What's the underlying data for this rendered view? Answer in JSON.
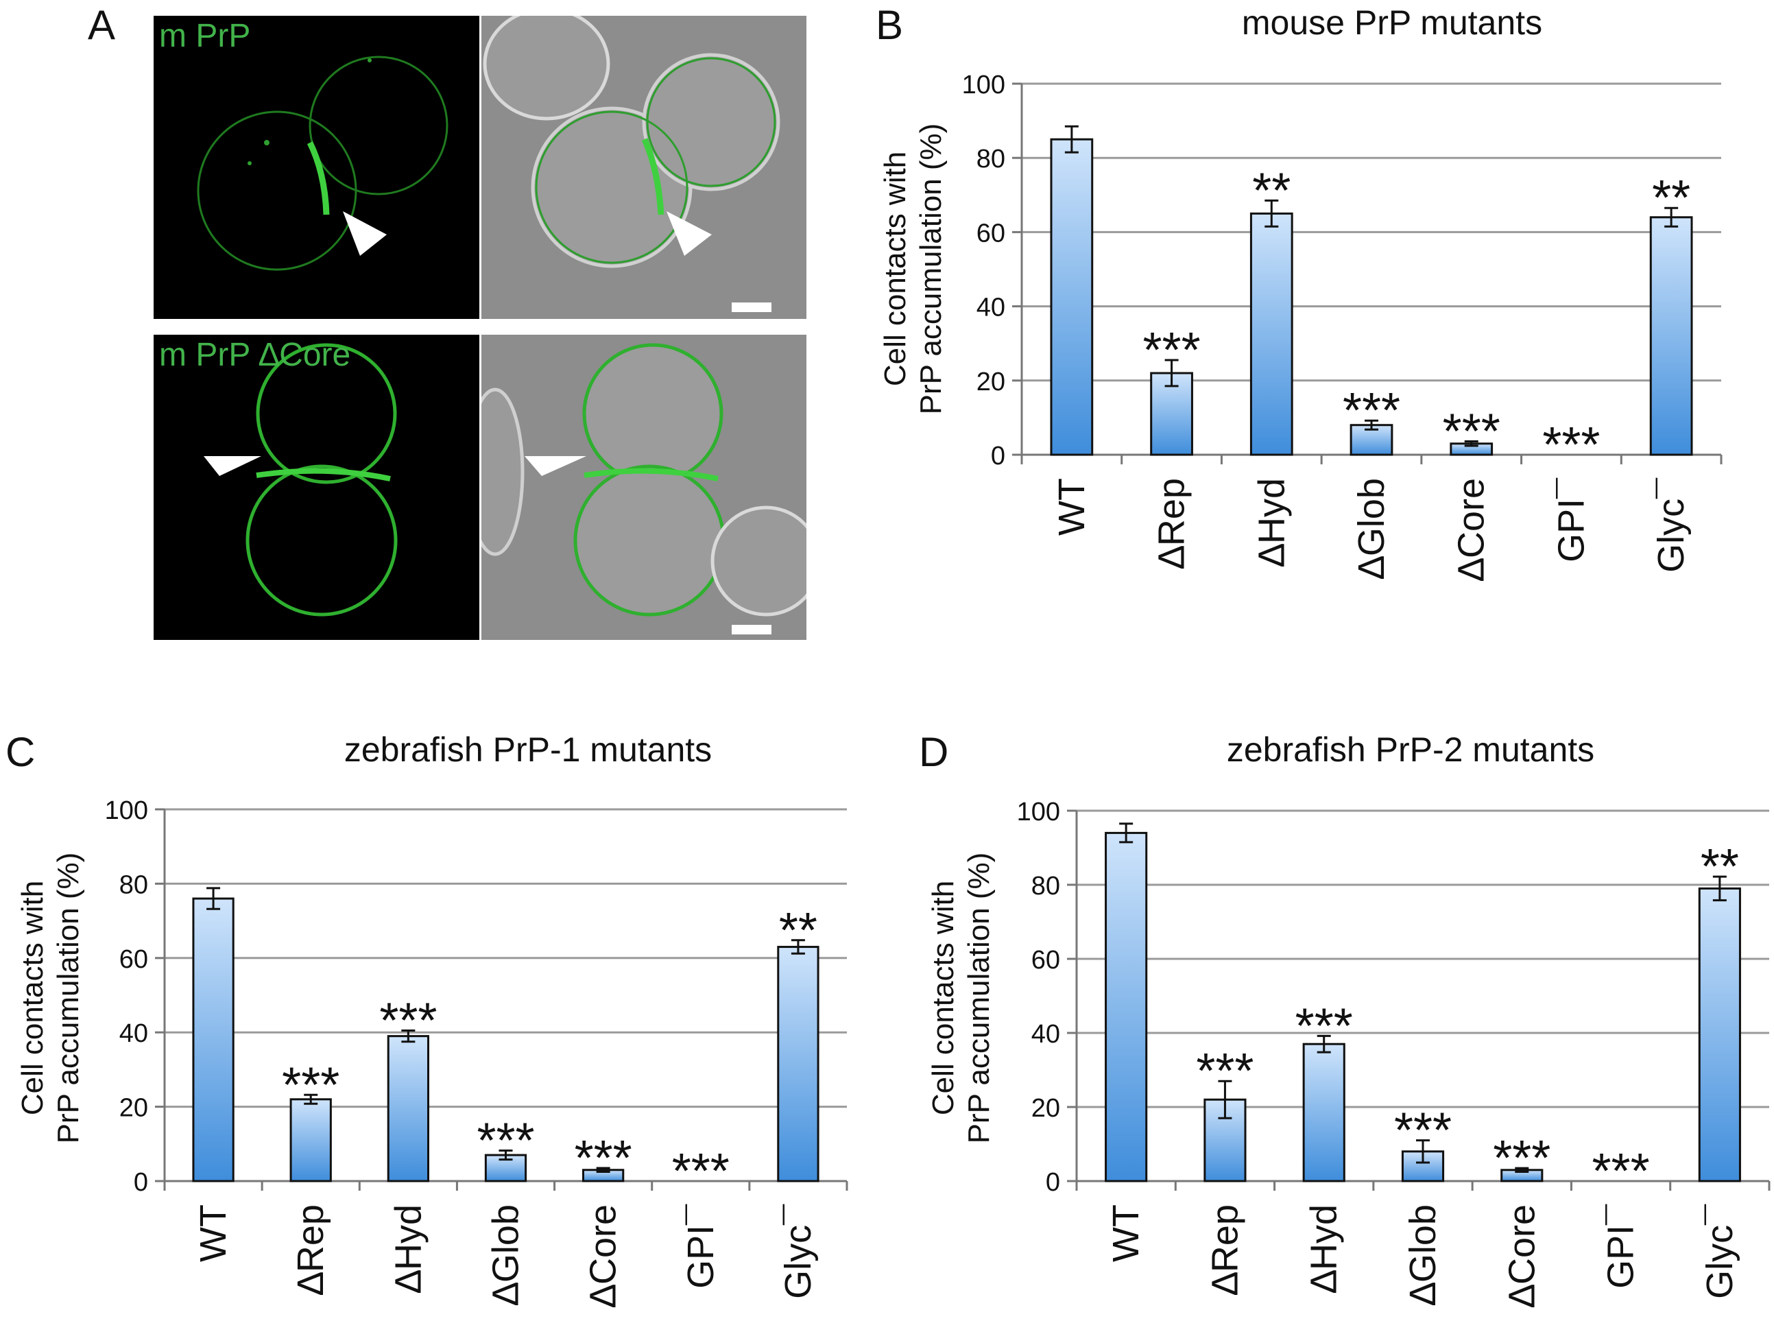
{
  "panel_a": {
    "letter": "A",
    "top_label": "m PrP",
    "bottom_label": "m PrP ∆Core"
  },
  "colors": {
    "bar_top": "#cfe4fb",
    "bar_bottom": "#3f8ddb",
    "gridline": "#9a9a9a",
    "fluorescence": "#3fd03f"
  },
  "chart_data": [
    {
      "panel": "B",
      "type": "bar",
      "title": "mouse PrP mutants",
      "ylabel_line1": "Cell contacts with",
      "ylabel_line2": "PrP accumulation (%)",
      "ylim": [
        0,
        100
      ],
      "yticks": [
        0,
        20,
        40,
        60,
        80,
        100
      ],
      "grid": true,
      "categories": [
        "WT",
        "∆Rep",
        "∆Hyd",
        "∆Glob",
        "∆Core",
        "GPI¯",
        "Glyc¯"
      ],
      "values": [
        85,
        22,
        65,
        8,
        3,
        0,
        64
      ],
      "errors": [
        3.5,
        3.5,
        3.5,
        1.2,
        0.6,
        0,
        2.5
      ],
      "significance": [
        "",
        "***",
        "**",
        "***",
        "***",
        "***",
        "**"
      ]
    },
    {
      "panel": "C",
      "type": "bar",
      "title": "zebrafish PrP-1 mutants",
      "ylabel_line1": "Cell contacts with",
      "ylabel_line2": "PrP accumulation (%)",
      "ylim": [
        0,
        100
      ],
      "yticks": [
        0,
        20,
        40,
        60,
        80,
        100
      ],
      "grid": true,
      "categories": [
        "WT",
        "∆Rep",
        "∆Hyd",
        "∆Glob",
        "∆Core",
        "GPI¯",
        "Glyc¯"
      ],
      "values": [
        76,
        22,
        39,
        7,
        3,
        0,
        63
      ],
      "errors": [
        2.8,
        1.2,
        1.5,
        1.2,
        0.5,
        0,
        1.8
      ],
      "significance": [
        "",
        "***",
        "***",
        "***",
        "***",
        "***",
        "**"
      ]
    },
    {
      "panel": "D",
      "type": "bar",
      "title": "zebrafish PrP-2 mutants",
      "ylabel_line1": "Cell contacts with",
      "ylabel_line2": "PrP accumulation (%)",
      "ylim": [
        0,
        100
      ],
      "yticks": [
        0,
        20,
        40,
        60,
        80,
        100
      ],
      "grid": true,
      "categories": [
        "WT",
        "∆Rep",
        "∆Hyd",
        "∆Glob",
        "∆Core",
        "GPI¯",
        "Glyc¯"
      ],
      "values": [
        94,
        22,
        37,
        8,
        3,
        0,
        79
      ],
      "errors": [
        2.5,
        5.0,
        2.2,
        3.0,
        0.5,
        0,
        3.2
      ],
      "significance": [
        "",
        "***",
        "***",
        "***",
        "***",
        "***",
        "**"
      ]
    }
  ]
}
